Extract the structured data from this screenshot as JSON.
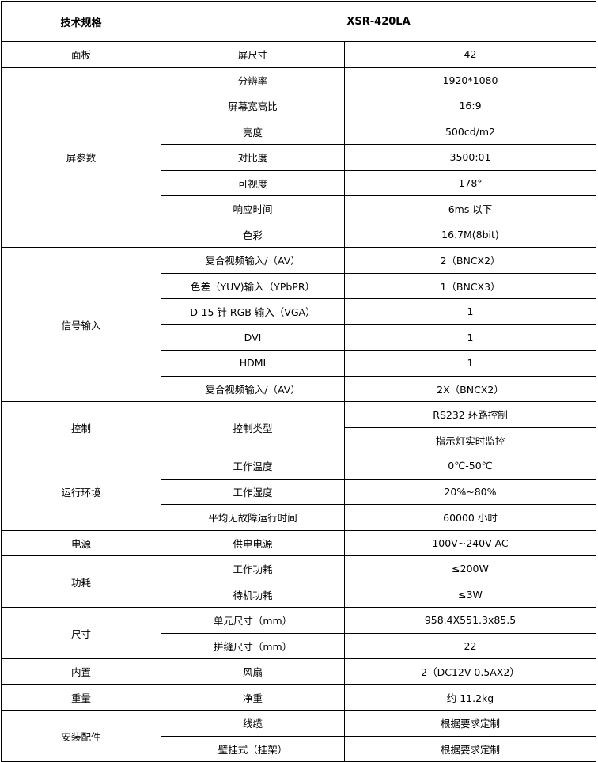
{
  "header": {
    "label": "技术规格",
    "model": "XSR-420LA"
  },
  "groups": [
    {
      "category": "面板",
      "rows": [
        {
          "item": "屏尺寸",
          "value": "42"
        }
      ]
    },
    {
      "category": "屏参数",
      "rows": [
        {
          "item": "分辨率",
          "value": "1920*1080"
        },
        {
          "item": "屏幕宽高比",
          "value": "16:9"
        },
        {
          "item": "亮度",
          "value": "500cd/m2"
        },
        {
          "item": "对比度",
          "value": "3500:01"
        },
        {
          "item": "可视度",
          "value": "178°"
        },
        {
          "item": "响应时间",
          "value": "6ms 以下"
        },
        {
          "item": "色彩",
          "value": "16.7M(8bit)"
        }
      ]
    },
    {
      "category": "信号输入",
      "rows": [
        {
          "item": "复合视频输入/（AV）",
          "value": "2（BNCX2）"
        },
        {
          "item": "色差（YUV)输入（YPbPR）",
          "value": "1（BNCX3）"
        },
        {
          "item": "D-15 针 RGB 输入（VGA）",
          "value": "1"
        },
        {
          "item": "DVI",
          "value": "1"
        },
        {
          "item": "HDMI",
          "value": "1"
        },
        {
          "item": "复合视频输入/（AV）",
          "value": "2X（BNCX2）"
        }
      ]
    },
    {
      "category": "控制",
      "rows": [
        {
          "item": "控制类型",
          "values": [
            "RS232 环路控制",
            "指示灯实时监控"
          ]
        }
      ]
    },
    {
      "category": "运行环境",
      "rows": [
        {
          "item": "工作温度",
          "value": "0℃-50℃"
        },
        {
          "item": "工作湿度",
          "value": "20%~80%"
        },
        {
          "item": "平均无故障运行时间",
          "value": "60000 小时"
        }
      ]
    },
    {
      "category": "电源",
      "rows": [
        {
          "item": "供电电源",
          "value": "100V~240V  AC"
        }
      ]
    },
    {
      "category": "功耗",
      "rows": [
        {
          "item": "工作功耗",
          "value": "≤200W"
        },
        {
          "item": "待机功耗",
          "value": "≤3W"
        }
      ]
    },
    {
      "category": "尺寸",
      "rows": [
        {
          "item": "单元尺寸（mm）",
          "value": "958.4X551.3x85.5"
        },
        {
          "item": "拼缝尺寸（mm）",
          "value": "22"
        }
      ]
    },
    {
      "category": "内置",
      "rows": [
        {
          "item": "风扇",
          "value": "2（DC12V 0.5AX2）"
        }
      ]
    },
    {
      "category": "重量",
      "rows": [
        {
          "item": "净重",
          "value": "约 11.2kg"
        }
      ]
    },
    {
      "category": "安装配件",
      "rows": [
        {
          "item": "线缆",
          "value": "根据要求定制"
        },
        {
          "item": "壁挂式（挂架）",
          "value": "根据要求定制"
        }
      ]
    }
  ]
}
